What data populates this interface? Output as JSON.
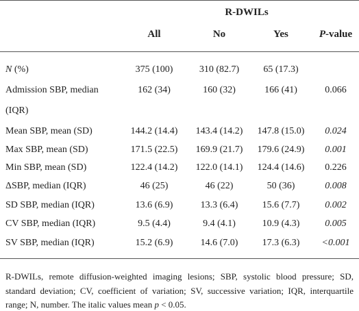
{
  "table": {
    "group_header": "R-DWILs",
    "columns": [
      [
        {
          "text": "All",
          "italic": false
        }
      ],
      [
        {
          "text": "No",
          "italic": false
        }
      ],
      [
        {
          "text": "Yes",
          "italic": false
        }
      ],
      [
        {
          "text": "P",
          "italic": true
        },
        {
          "text": "-value",
          "italic": false
        }
      ]
    ],
    "rows": [
      {
        "label": [
          {
            "text": "N",
            "italic": true
          },
          {
            "text": " (%)",
            "italic": false
          }
        ],
        "cells": [
          "375 (100)",
          "310 (82.7)",
          "65 (17.3)",
          ""
        ],
        "p_italic": false
      },
      {
        "label": [
          {
            "text": "Admission SBP, median (IQR)",
            "italic": false
          }
        ],
        "cells": [
          "162 (34)",
          "160 (32)",
          "166 (41)",
          "0.066"
        ],
        "p_italic": false
      },
      {
        "label": [
          {
            "text": "Mean SBP, mean (SD)",
            "italic": false
          }
        ],
        "cells": [
          "144.2 (14.4)",
          "143.4 (14.2)",
          "147.8 (15.0)",
          "0.024"
        ],
        "p_italic": true
      },
      {
        "label": [
          {
            "text": "Max SBP, mean (SD)",
            "italic": false
          }
        ],
        "cells": [
          "171.5 (22.5)",
          "169.9 (21.7)",
          "179.6 (24.9)",
          "0.001"
        ],
        "p_italic": true
      },
      {
        "label": [
          {
            "text": "Min SBP, mean (SD)",
            "italic": false
          }
        ],
        "cells": [
          "122.4 (14.2)",
          "122.0 (14.1)",
          "124.4 (14.6)",
          "0.226"
        ],
        "p_italic": false
      },
      {
        "label": [
          {
            "text": "ΔSBP, median (IQR)",
            "italic": false
          }
        ],
        "cells": [
          "46 (25)",
          "46 (22)",
          "50 (36)",
          "0.008"
        ],
        "p_italic": true
      },
      {
        "label": [
          {
            "text": "SD SBP, median (IQR)",
            "italic": false
          }
        ],
        "cells": [
          "13.6 (6.9)",
          "13.3 (6.4)",
          "15.6 (7.7)",
          "0.002"
        ],
        "p_italic": true
      },
      {
        "label": [
          {
            "text": "CV SBP, median (IQR)",
            "italic": false
          }
        ],
        "cells": [
          "9.5 (4.4)",
          "9.4 (4.1)",
          "10.9 (4.3)",
          "0.005"
        ],
        "p_italic": true
      },
      {
        "label": [
          {
            "text": "SV SBP, median (IQR)",
            "italic": false
          }
        ],
        "cells": [
          "15.2 (6.9)",
          "14.6 (7.0)",
          "17.3 (6.3)",
          "<0.001"
        ],
        "p_italic": true
      }
    ],
    "footnote": [
      {
        "text": "R-DWILs, remote diffusion-weighted imaging lesions; SBP, systolic blood pressure; SD, standard deviation; CV, coefficient of variation; SV, successive variation; IQR, interquartile range; N, number. The italic values mean ",
        "italic": false
      },
      {
        "text": "p",
        "italic": true
      },
      {
        "text": " < 0.05.",
        "italic": false
      }
    ]
  }
}
